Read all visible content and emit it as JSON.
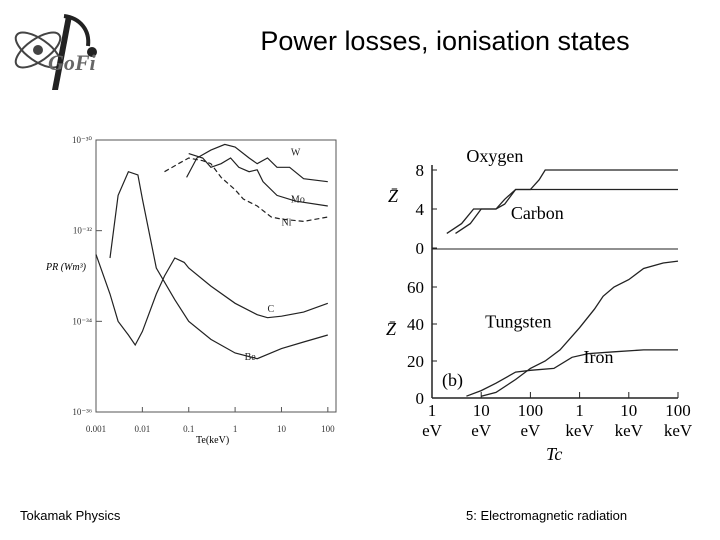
{
  "slide": {
    "title": "Power losses, ionisation states",
    "footer_left": "Tokamak Physics",
    "footer_right": "5: Electromagnetic radiation",
    "logo_text": "GoFi"
  },
  "chart_data": [
    {
      "type": "line",
      "title": "",
      "xlabel": "Te(keV)",
      "ylabel": "PR (Wm³)",
      "xscale": "log",
      "yscale": "log",
      "xlim": [
        0.001,
        150
      ],
      "ylim": [
        1e-36,
        1e-30
      ],
      "x_ticks": [
        "0.001",
        "0.01",
        "0.1",
        "1",
        "10",
        "100"
      ],
      "y_ticks": [
        "10⁻³⁰",
        "10⁻³²",
        "10⁻³⁴",
        "10⁻³⁶"
      ],
      "series": [
        {
          "name": "W",
          "label": "W",
          "style": "solid",
          "points": [
            [
              0.09,
              1.5e-31
            ],
            [
              0.15,
              4e-31
            ],
            [
              0.3,
              6e-31
            ],
            [
              0.6,
              8e-31
            ],
            [
              1,
              7e-31
            ],
            [
              2,
              4e-31
            ],
            [
              3,
              3e-31
            ],
            [
              5,
              4e-31
            ],
            [
              8,
              2.5e-31
            ],
            [
              15,
              2.5e-31
            ],
            [
              30,
              1.4e-31
            ],
            [
              100,
              1.2e-31
            ]
          ]
        },
        {
          "name": "Mo",
          "label": "Mo",
          "style": "solid",
          "points": [
            [
              0.1,
              5e-31
            ],
            [
              0.2,
              4e-31
            ],
            [
              0.3,
              2.5e-31
            ],
            [
              0.5,
              3e-31
            ],
            [
              0.8,
              4e-31
            ],
            [
              1.2,
              2.5e-31
            ],
            [
              2,
              2e-31
            ],
            [
              3,
              2.2e-31
            ],
            [
              4,
              1.2e-31
            ],
            [
              8,
              6e-32
            ],
            [
              20,
              4.5e-32
            ],
            [
              100,
              3.5e-32
            ]
          ]
        },
        {
          "name": "Ni",
          "label": "Ni",
          "style": "dashed",
          "points": [
            [
              0.03,
              2e-31
            ],
            [
              0.06,
              3e-31
            ],
            [
              0.1,
              4e-31
            ],
            [
              0.2,
              3.5e-31
            ],
            [
              0.3,
              3e-31
            ],
            [
              0.5,
              1.5e-31
            ],
            [
              1,
              8e-32
            ],
            [
              1.5,
              5e-32
            ],
            [
              3,
              3.5e-32
            ],
            [
              6,
              2e-32
            ],
            [
              10,
              1.8e-32
            ],
            [
              30,
              1.6e-32
            ],
            [
              100,
              2e-32
            ]
          ]
        },
        {
          "name": "C",
          "label": "C",
          "style": "solid",
          "points": [
            [
              0.001,
              3e-33
            ],
            [
              0.002,
              4e-34
            ],
            [
              0.003,
              1e-34
            ],
            [
              0.005,
              5e-35
            ],
            [
              0.007,
              3e-35
            ],
            [
              0.01,
              6e-35
            ],
            [
              0.02,
              4e-34
            ],
            [
              0.03,
              1e-33
            ],
            [
              0.05,
              2.5e-33
            ],
            [
              0.08,
              2e-33
            ],
            [
              0.1,
              1.5e-33
            ],
            [
              0.3,
              6e-34
            ],
            [
              1,
              2.5e-34
            ],
            [
              3,
              1.4e-34
            ],
            [
              5,
              1.2e-34
            ],
            [
              10,
              1.3e-34
            ],
            [
              30,
              1.6e-34
            ],
            [
              100,
              2.5e-34
            ]
          ]
        },
        {
          "name": "Be",
          "label": "Be",
          "style": "solid",
          "points": [
            [
              0.002,
              2.5e-33
            ],
            [
              0.003,
              6e-32
            ],
            [
              0.005,
              2e-31
            ],
            [
              0.008,
              1.7e-31
            ],
            [
              0.01,
              5e-32
            ],
            [
              0.02,
              1.5e-33
            ],
            [
              0.05,
              3e-34
            ],
            [
              0.1,
              1e-34
            ],
            [
              0.3,
              4e-35
            ],
            [
              1,
              2e-35
            ],
            [
              3,
              1.5e-35
            ],
            [
              10,
              2.5e-35
            ],
            [
              30,
              3.5e-35
            ],
            [
              100,
              5e-35
            ]
          ]
        }
      ]
    },
    {
      "type": "line",
      "panel": "upper",
      "title": "",
      "xlabel": "",
      "ylabel": "Z̄",
      "xscale": "log",
      "xlim": [
        0.001,
        100
      ],
      "ylim": [
        0,
        8
      ],
      "y_ticks": [
        "0",
        "4",
        "8"
      ],
      "series": [
        {
          "name": "Oxygen",
          "label": "Oxygen",
          "points": [
            [
              0.003,
              1.5
            ],
            [
              0.006,
              2.5
            ],
            [
              0.01,
              4
            ],
            [
              0.02,
              4
            ],
            [
              0.03,
              4.5
            ],
            [
              0.05,
              6
            ],
            [
              0.1,
              6
            ],
            [
              0.15,
              7
            ],
            [
              0.2,
              8
            ],
            [
              0.5,
              8
            ],
            [
              2,
              8
            ],
            [
              100,
              8
            ]
          ]
        },
        {
          "name": "Carbon",
          "label": "Carbon",
          "points": [
            [
              0.002,
              1.5
            ],
            [
              0.004,
              2.5
            ],
            [
              0.007,
              4
            ],
            [
              0.02,
              4
            ],
            [
              0.03,
              5
            ],
            [
              0.05,
              6
            ],
            [
              0.1,
              6
            ],
            [
              1,
              6
            ],
            [
              100,
              6
            ]
          ]
        }
      ]
    },
    {
      "type": "line",
      "panel": "lower",
      "title": "",
      "xlabel": "Tc",
      "ylabel": "Z̄",
      "xscale": "log",
      "xlim": [
        0.001,
        100
      ],
      "ylim": [
        0,
        80
      ],
      "y_ticks": [
        "0",
        "20",
        "40",
        "60"
      ],
      "x_ticks": [
        "1",
        "10",
        "100",
        "1",
        "10",
        "100"
      ],
      "x_tick_units": [
        "eV",
        "eV",
        "eV",
        "keV",
        "keV",
        "keV"
      ],
      "panel_label": "(b)",
      "series": [
        {
          "name": "Tungsten",
          "label": "Tungsten",
          "points": [
            [
              0.01,
              1
            ],
            [
              0.02,
              3
            ],
            [
              0.05,
              10
            ],
            [
              0.1,
              16
            ],
            [
              0.2,
              20
            ],
            [
              0.4,
              26
            ],
            [
              1,
              38
            ],
            [
              2,
              48
            ],
            [
              3,
              55
            ],
            [
              5,
              60
            ],
            [
              10,
              64
            ],
            [
              20,
              70
            ],
            [
              50,
              73
            ],
            [
              100,
              74
            ]
          ]
        },
        {
          "name": "Iron",
          "label": "Iron",
          "points": [
            [
              0.005,
              1
            ],
            [
              0.01,
              4
            ],
            [
              0.02,
              8
            ],
            [
              0.05,
              14
            ],
            [
              0.1,
              15
            ],
            [
              0.3,
              16
            ],
            [
              0.7,
              22
            ],
            [
              1.5,
              24
            ],
            [
              5,
              25
            ],
            [
              20,
              26
            ],
            [
              100,
              26
            ]
          ]
        }
      ]
    }
  ]
}
